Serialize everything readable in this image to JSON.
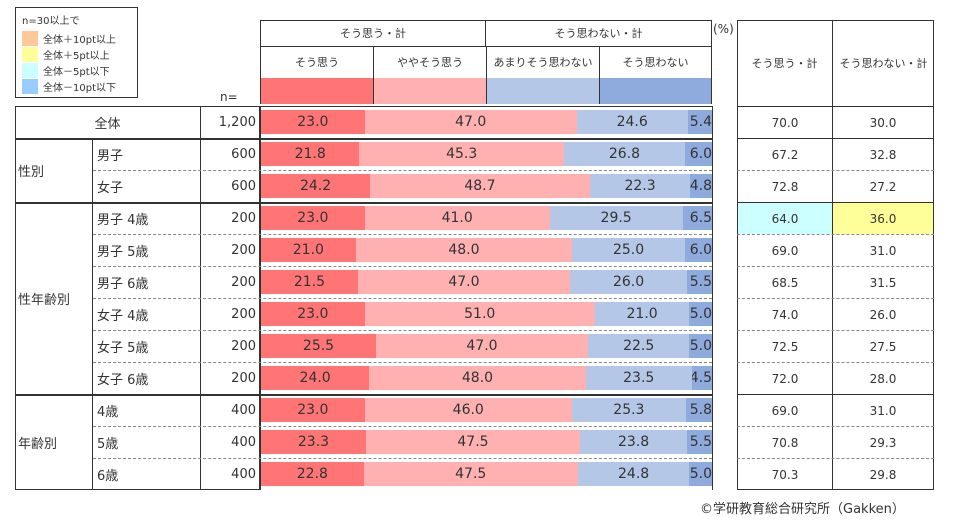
{
  "legend": {
    "title": "n=30以上で",
    "items": [
      {
        "label": "全体＋10pt以上",
        "color": "#ffc898"
      },
      {
        "label": "全体＋5pt以上",
        "color": "#ffff99"
      },
      {
        "label": "全体－5pt以下",
        "color": "#ccffff"
      },
      {
        "label": "全体－10pt以下",
        "color": "#99ccff"
      }
    ]
  },
  "n_label": "n=",
  "pct_label": "(%)",
  "copyright": "©学研教育総合研究所（Gakken）",
  "chart_data": {
    "type": "bar",
    "stacked": true,
    "orientation": "horizontal",
    "group_headers": [
      "そう思う・計",
      "そう思わない・計"
    ],
    "series": [
      {
        "name": "そう思う",
        "color": "#ff7575"
      },
      {
        "name": "ややそう思う",
        "color": "#ffb1b1"
      },
      {
        "name": "あまりそう思わない",
        "color": "#b4c7e7"
      },
      {
        "name": "そう思わない",
        "color": "#8faadc"
      }
    ],
    "summary_headers": [
      "そう思う・計",
      "そう思わない・計"
    ],
    "groups": [
      {
        "label": "",
        "rows": 1,
        "merged": true
      },
      {
        "label": "性別",
        "rows": 2
      },
      {
        "label": "性年齢別",
        "rows": 6
      },
      {
        "label": "年齢別",
        "rows": 3
      }
    ],
    "rows": [
      {
        "label": "全体",
        "n": "1,200",
        "values": [
          23.0,
          47.0,
          24.6,
          5.4
        ],
        "yes": "70.0",
        "no": "30.0"
      },
      {
        "label": "男子",
        "n": "600",
        "values": [
          21.8,
          45.3,
          26.8,
          6.0
        ],
        "yes": "67.2",
        "no": "32.8"
      },
      {
        "label": "女子",
        "n": "600",
        "values": [
          24.2,
          48.7,
          22.3,
          4.8
        ],
        "yes": "72.8",
        "no": "27.2"
      },
      {
        "label": "男子  4歳",
        "n": "200",
        "values": [
          23.0,
          41.0,
          29.5,
          6.5
        ],
        "yes": "64.0",
        "no": "36.0",
        "yes_hl": "#ccffff",
        "no_hl": "#ffff99"
      },
      {
        "label": "男子  5歳",
        "n": "200",
        "values": [
          21.0,
          48.0,
          25.0,
          6.0
        ],
        "yes": "69.0",
        "no": "31.0"
      },
      {
        "label": "男子  6歳",
        "n": "200",
        "values": [
          21.5,
          47.0,
          26.0,
          5.5
        ],
        "yes": "68.5",
        "no": "31.5"
      },
      {
        "label": "女子  4歳",
        "n": "200",
        "values": [
          23.0,
          51.0,
          21.0,
          5.0
        ],
        "yes": "74.0",
        "no": "26.0"
      },
      {
        "label": "女子  5歳",
        "n": "200",
        "values": [
          25.5,
          47.0,
          22.5,
          5.0
        ],
        "yes": "72.5",
        "no": "27.5"
      },
      {
        "label": "女子  6歳",
        "n": "200",
        "values": [
          24.0,
          48.0,
          23.5,
          4.5
        ],
        "yes": "72.0",
        "no": "28.0"
      },
      {
        "label": "4歳",
        "n": "400",
        "values": [
          23.0,
          46.0,
          25.3,
          5.8
        ],
        "yes": "69.0",
        "no": "31.0"
      },
      {
        "label": "5歳",
        "n": "400",
        "values": [
          23.3,
          47.5,
          23.8,
          5.5
        ],
        "yes": "70.8",
        "no": "29.3"
      },
      {
        "label": "6歳",
        "n": "400",
        "values": [
          22.8,
          47.5,
          24.8,
          5.0
        ],
        "yes": "70.3",
        "no": "29.8"
      }
    ]
  }
}
